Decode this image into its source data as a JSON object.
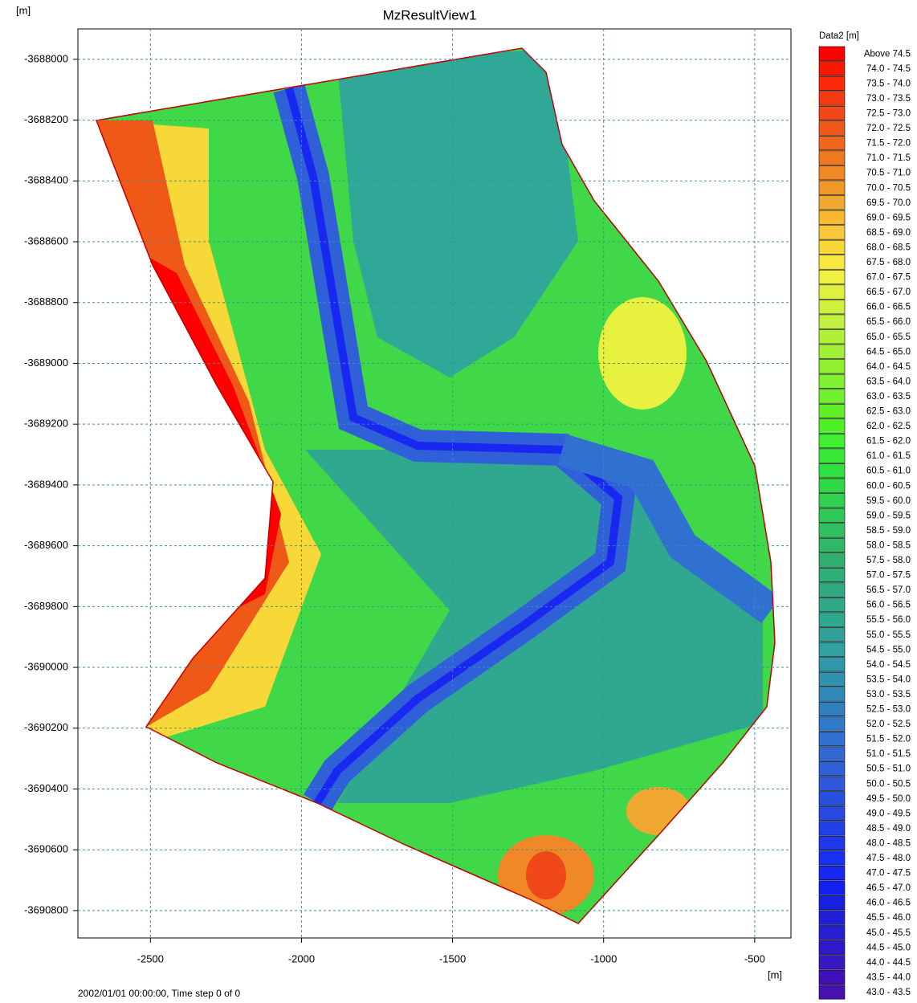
{
  "chart_data": {
    "type": "contour",
    "title": "MzResultView1",
    "ylabel": "[m]",
    "xlabel": "[m]",
    "footer": "2002/01/01 00:00:00, Time step 0 of 0",
    "xlim": [
      -2740,
      -380
    ],
    "xticks": [
      -2500,
      -2000,
      -1500,
      -1000,
      -500
    ],
    "ylim": [
      -3690890,
      -3687900
    ],
    "yticks": [
      -3688000,
      -3688200,
      -3688400,
      -3688600,
      -3688800,
      -3689000,
      -3689200,
      -3689400,
      -3689600,
      -3689800,
      -3690000,
      -3690200,
      -3690400,
      -3690600,
      -3690800
    ],
    "grid": true,
    "legend": {
      "title": "Data2 [m]",
      "items": [
        {
          "label": "Above 74.5",
          "color": "#ff0000"
        },
        {
          "label": "74.0 - 74.5",
          "color": "#f81800"
        },
        {
          "label": "73.5 - 74.0",
          "color": "#f82808"
        },
        {
          "label": "73.0 - 73.5",
          "color": "#f43810"
        },
        {
          "label": "72.5 - 73.0",
          "color": "#f04818"
        },
        {
          "label": "72.0 - 72.5",
          "color": "#f05818"
        },
        {
          "label": "71.5 - 72.0",
          "color": "#f06820"
        },
        {
          "label": "71.0 - 71.5",
          "color": "#f07820"
        },
        {
          "label": "70.5 - 71.0",
          "color": "#f08828"
        },
        {
          "label": "70.0 - 70.5",
          "color": "#f09828"
        },
        {
          "label": "69.5 - 70.0",
          "color": "#f0a830"
        },
        {
          "label": "69.0 - 69.5",
          "color": "#f8b830"
        },
        {
          "label": "68.5 - 69.0",
          "color": "#f8c838"
        },
        {
          "label": "68.0 - 68.5",
          "color": "#f8d838"
        },
        {
          "label": "67.5 - 68.0",
          "color": "#f8e840"
        },
        {
          "label": "67.0 - 67.5",
          "color": "#f0f040"
        },
        {
          "label": "66.5 - 67.0",
          "color": "#e0f040"
        },
        {
          "label": "66.0 - 66.5",
          "color": "#d0f040"
        },
        {
          "label": "65.5 - 66.0",
          "color": "#c0f040"
        },
        {
          "label": "65.0 - 65.5",
          "color": "#b0f038"
        },
        {
          "label": "64.5 - 65.0",
          "color": "#a0f038"
        },
        {
          "label": "64.0 - 64.5",
          "color": "#90f030"
        },
        {
          "label": "63.5 - 64.0",
          "color": "#80f030"
        },
        {
          "label": "63.0 - 63.5",
          "color": "#70f030"
        },
        {
          "label": "62.5 - 63.0",
          "color": "#60f028"
        },
        {
          "label": "62.0 - 62.5",
          "color": "#50f028"
        },
        {
          "label": "61.5 - 62.0",
          "color": "#40f030"
        },
        {
          "label": "61.0 - 61.5",
          "color": "#38e838"
        },
        {
          "label": "60.5 - 61.0",
          "color": "#30e040"
        },
        {
          "label": "60.0 - 60.5",
          "color": "#30d848"
        },
        {
          "label": "59.5 - 60.0",
          "color": "#30d050"
        },
        {
          "label": "59.0 - 59.5",
          "color": "#30c858"
        },
        {
          "label": "58.5 - 59.0",
          "color": "#30c060"
        },
        {
          "label": "58.0 - 58.5",
          "color": "#30b868"
        },
        {
          "label": "57.5 - 58.0",
          "color": "#30b070"
        },
        {
          "label": "57.0 - 57.5",
          "color": "#30b078"
        },
        {
          "label": "56.5 - 57.0",
          "color": "#30a880"
        },
        {
          "label": "56.0 - 56.5",
          "color": "#30a888"
        },
        {
          "label": "55.5 - 56.0",
          "color": "#30a890"
        },
        {
          "label": "55.0 - 55.5",
          "color": "#30a098"
        },
        {
          "label": "54.5 - 55.0",
          "color": "#30a0a0"
        },
        {
          "label": "54.0 - 54.5",
          "color": "#3098a8"
        },
        {
          "label": "53.5 - 54.0",
          "color": "#3090b0"
        },
        {
          "label": "53.0 - 53.5",
          "color": "#3088b8"
        },
        {
          "label": "52.5 - 53.0",
          "color": "#3080c0"
        },
        {
          "label": "52.0 - 52.5",
          "color": "#3078c8"
        },
        {
          "label": "51.5 - 52.0",
          "color": "#3070d0"
        },
        {
          "label": "51.0 - 51.5",
          "color": "#3068d0"
        },
        {
          "label": "50.5 - 51.0",
          "color": "#3060d8"
        },
        {
          "label": "50.0 - 50.5",
          "color": "#3058d8"
        },
        {
          "label": "49.5 - 50.0",
          "color": "#2850e0"
        },
        {
          "label": "49.0 - 49.5",
          "color": "#2848e0"
        },
        {
          "label": "48.5 - 49.0",
          "color": "#2040e8"
        },
        {
          "label": "48.0 - 48.5",
          "color": "#2038e8"
        },
        {
          "label": "47.5 - 48.0",
          "color": "#1830f0"
        },
        {
          "label": "47.0 - 47.5",
          "color": "#1828f0"
        },
        {
          "label": "46.5 - 47.0",
          "color": "#1020f0"
        },
        {
          "label": "46.0 - 46.5",
          "color": "#1820e0"
        },
        {
          "label": "45.5 - 46.0",
          "color": "#2020d8"
        },
        {
          "label": "45.0 - 45.5",
          "color": "#2820d0"
        },
        {
          "label": "44.5 - 45.0",
          "color": "#3018c8"
        },
        {
          "label": "44.0 - 44.5",
          "color": "#3818c0"
        },
        {
          "label": "43.5 - 44.0",
          "color": "#4010b8"
        },
        {
          "label": "43.0 - 43.5",
          "color": "#4810b0"
        }
      ]
    }
  }
}
